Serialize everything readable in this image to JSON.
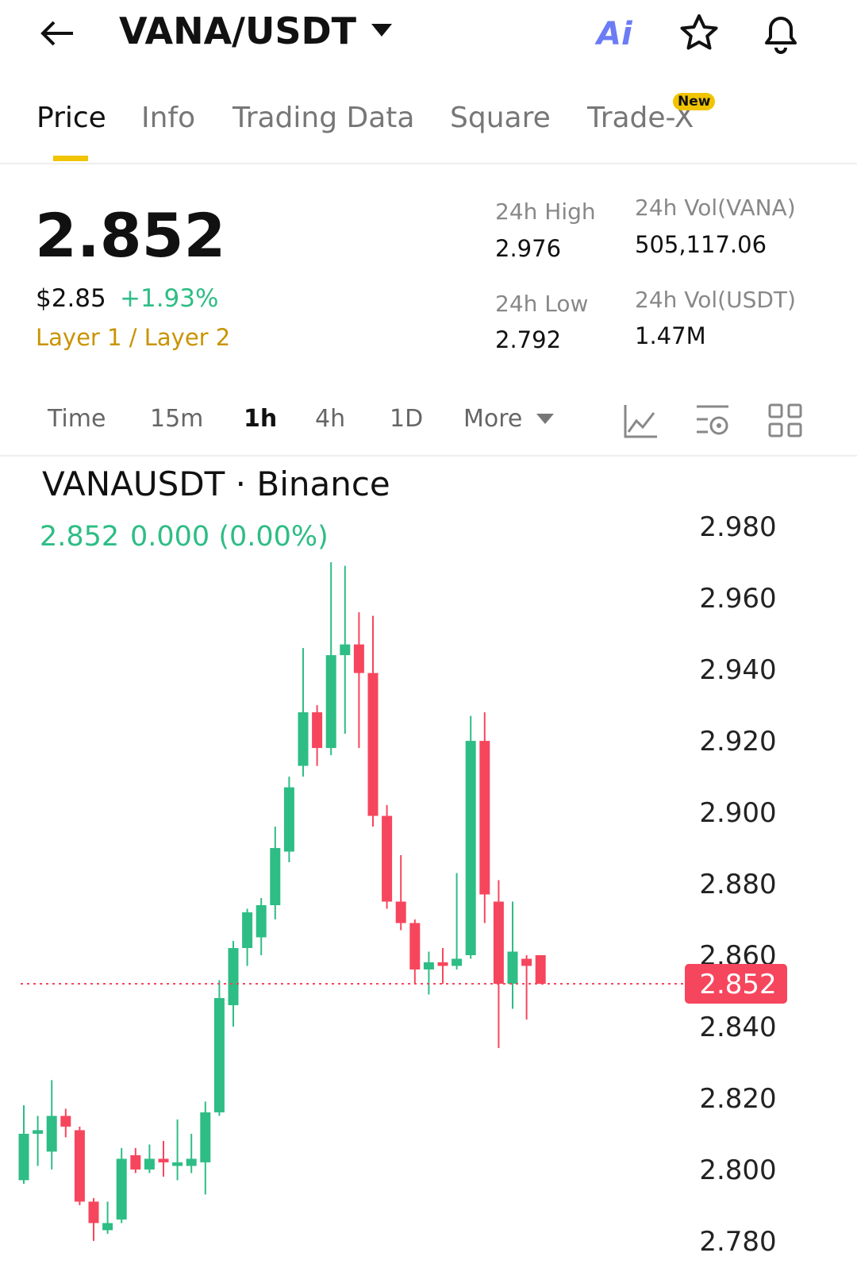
{
  "header": {
    "pair": "VANA/USDT",
    "ai": "Ai"
  },
  "tabs": {
    "items": [
      "Price",
      "Info",
      "Trading Data",
      "Square",
      "Trade-X"
    ],
    "badge": "New"
  },
  "ticker": {
    "price": "2.852",
    "usd": "$2.85",
    "change": "+1.93%",
    "tag": "Layer 1 / Layer 2"
  },
  "stats": [
    {
      "label": "24h High",
      "value": "2.976"
    },
    {
      "label": "24h Vol(VANA)",
      "value": "505,117.06"
    },
    {
      "label": "24h Low",
      "value": "2.792"
    },
    {
      "label": "24h Vol(USDT)",
      "value": "1.47M"
    }
  ],
  "intervals": [
    "Time",
    "15m",
    "1h",
    "4h",
    "1D",
    "More"
  ],
  "chart_data": {
    "type": "candlestick",
    "title": "VANAUSDT · Binance",
    "legend_price": "2.852",
    "legend_change": "0.000 (0.00%)",
    "up_color": "#2ebd85",
    "down_color": "#f6465d",
    "last": 2.852,
    "open": [
      2.797,
      2.81,
      2.805,
      2.815,
      2.811,
      2.791,
      2.783,
      2.786,
      2.804,
      2.8,
      2.803,
      2.801,
      2.801,
      2.802,
      2.816,
      2.846,
      2.862,
      2.865,
      2.874,
      2.889,
      2.913,
      2.928,
      2.918,
      2.944,
      2.947,
      2.939,
      2.899,
      2.875,
      2.869,
      2.856,
      2.858,
      2.857,
      2.86,
      2.92,
      2.875,
      2.852,
      2.859,
      2.86
    ],
    "high": [
      2.818,
      2.815,
      2.825,
      2.817,
      2.812,
      2.792,
      2.791,
      2.806,
      2.806,
      2.807,
      2.808,
      2.814,
      2.81,
      2.819,
      2.853,
      2.864,
      2.873,
      2.876,
      2.896,
      2.91,
      2.946,
      2.93,
      2.97,
      2.969,
      2.956,
      2.955,
      2.902,
      2.888,
      2.87,
      2.861,
      2.862,
      2.883,
      2.927,
      2.928,
      2.881,
      2.875,
      2.86,
      2.86
    ],
    "low": [
      2.796,
      2.801,
      2.8,
      2.809,
      2.79,
      2.78,
      2.782,
      2.785,
      2.799,
      2.799,
      2.798,
      2.797,
      2.799,
      2.793,
      2.815,
      2.84,
      2.857,
      2.86,
      2.87,
      2.886,
      2.91,
      2.913,
      2.916,
      2.922,
      2.918,
      2.896,
      2.873,
      2.867,
      2.852,
      2.849,
      2.852,
      2.856,
      2.859,
      2.869,
      2.834,
      2.845,
      2.842,
      2.852
    ],
    "close": [
      2.81,
      2.811,
      2.815,
      2.812,
      2.791,
      2.785,
      2.785,
      2.803,
      2.8,
      2.803,
      2.802,
      2.802,
      2.803,
      2.816,
      2.848,
      2.862,
      2.872,
      2.874,
      2.89,
      2.907,
      2.928,
      2.918,
      2.944,
      2.947,
      2.939,
      2.899,
      2.875,
      2.869,
      2.856,
      2.858,
      2.857,
      2.859,
      2.92,
      2.877,
      2.852,
      2.861,
      2.857,
      2.852
    ],
    "ylim": [
      2.7713,
      2.9996
    ],
    "yticks": [
      {
        "value": 2.98,
        "label": "2.980"
      },
      {
        "value": 2.96,
        "label": "2.960"
      },
      {
        "value": 2.94,
        "label": "2.940"
      },
      {
        "value": 2.92,
        "label": "2.920"
      },
      {
        "value": 2.9,
        "label": "2.900"
      },
      {
        "value": 2.88,
        "label": "2.880"
      },
      {
        "value": 2.86,
        "label": "2.860"
      },
      {
        "value": 2.84,
        "label": "2.840"
      },
      {
        "value": 2.82,
        "label": "2.820"
      },
      {
        "value": 2.8,
        "label": "2.800"
      },
      {
        "value": 2.78,
        "label": "2.780"
      }
    ]
  }
}
